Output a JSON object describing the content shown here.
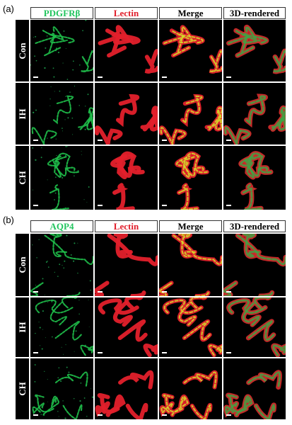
{
  "panels": [
    {
      "label": "(a)",
      "columns": [
        {
          "label": "PDGFRβ",
          "color": "#22c55e"
        },
        {
          "label": "Lectin",
          "color": "#e11d2a"
        },
        {
          "label": "Merge",
          "color": "#000000"
        },
        {
          "label": "3D-rendered",
          "color": "#000000"
        }
      ],
      "rows": [
        {
          "label": "Con"
        },
        {
          "label": "IH"
        },
        {
          "label": "CH"
        }
      ]
    },
    {
      "label": "(b)",
      "columns": [
        {
          "label": "AQP4",
          "color": "#22c55e"
        },
        {
          "label": "Lectin",
          "color": "#e11d2a"
        },
        {
          "label": "Merge",
          "color": "#000000"
        },
        {
          "label": "3D-rendered",
          "color": "#000000"
        }
      ],
      "rows": [
        {
          "label": "Con"
        },
        {
          "label": "IH"
        },
        {
          "label": "CH"
        }
      ]
    }
  ]
}
